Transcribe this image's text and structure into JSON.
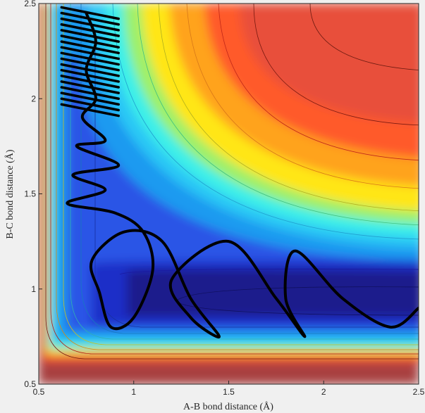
{
  "chart_data": {
    "type": "heatmap",
    "subtype": "filled-contour with trajectory overlay",
    "xlabel": "A-B bond distance (Å)",
    "ylabel": "B-C bond distance (Å)",
    "xlim": [
      0.5,
      2.5
    ],
    "ylim": [
      0.5,
      2.5
    ],
    "x_ticks": [
      0.5,
      1,
      1.5,
      2,
      2.5
    ],
    "y_ticks": [
      0.5,
      1,
      1.5,
      2,
      2.5
    ],
    "x_tick_labels": [
      "0.5",
      "1",
      "1.5",
      "2",
      "2.5"
    ],
    "y_tick_labels": [
      "0.5",
      "1",
      "1.5",
      "2",
      "2.5"
    ],
    "colormap": "jet",
    "colors": {
      "high_energy": "#a8413f",
      "trajectory": "#000000",
      "frame": "#262626"
    },
    "minimum_valley": {
      "x_at": 2.0,
      "y_at": 0.93
    },
    "grid": false,
    "trajectory": [
      [
        0.75,
        2.45
      ],
      [
        0.8,
        2.3
      ],
      [
        0.75,
        2.15
      ],
      [
        0.8,
        2.0
      ],
      [
        0.73,
        1.9
      ],
      [
        0.85,
        1.78
      ],
      [
        0.7,
        1.75
      ],
      [
        0.92,
        1.65
      ],
      [
        0.68,
        1.6
      ],
      [
        0.85,
        1.52
      ],
      [
        0.65,
        1.45
      ],
      [
        0.9,
        1.4
      ],
      [
        1.05,
        1.3
      ],
      [
        1.1,
        1.1
      ],
      [
        1.0,
        0.85
      ],
      [
        0.88,
        0.8
      ],
      [
        0.82,
        0.98
      ],
      [
        0.78,
        1.15
      ],
      [
        0.95,
        1.3
      ],
      [
        1.15,
        1.25
      ],
      [
        1.3,
        0.95
      ],
      [
        1.45,
        0.75
      ],
      [
        1.3,
        0.85
      ],
      [
        1.2,
        1.05
      ],
      [
        1.5,
        1.25
      ],
      [
        1.75,
        0.95
      ],
      [
        1.9,
        0.75
      ],
      [
        1.8,
        0.95
      ],
      [
        1.85,
        1.2
      ],
      [
        2.1,
        0.95
      ],
      [
        2.35,
        0.8
      ],
      [
        2.5,
        0.9
      ]
    ]
  }
}
